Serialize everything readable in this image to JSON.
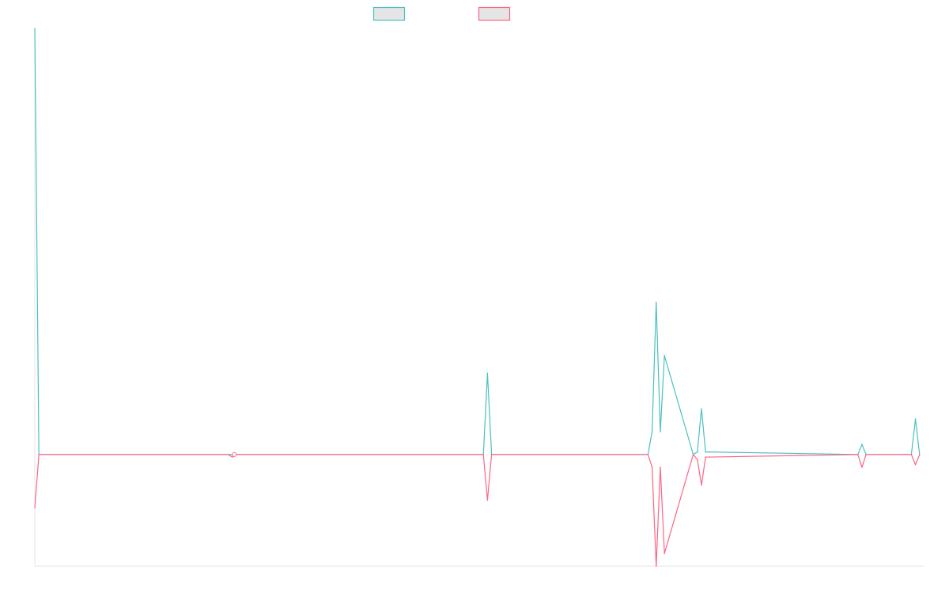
{
  "chart_data": {
    "type": "line",
    "title": "",
    "xlabel": "",
    "ylabel": "",
    "grid": false,
    "legend_position": "top-center",
    "x": [
      0,
      1,
      47,
      48,
      49,
      109,
      110,
      111,
      149,
      150,
      151,
      152,
      153,
      160,
      161,
      162,
      163,
      164,
      200,
      201,
      202,
      213,
      214,
      215
    ],
    "ylim": [
      -44,
      168
    ],
    "series": [
      {
        "color": "#4bc0c0",
        "fill": "#e5e5e5",
        "values": [
          168,
          0,
          0,
          0,
          0,
          0,
          32,
          0,
          0,
          9,
          60,
          9,
          39,
          0,
          1,
          18,
          1,
          1,
          0,
          4,
          0,
          0,
          14,
          0
        ]
      },
      {
        "color": "#ff6384",
        "fill": "#e5e5e5",
        "values": [
          -21,
          0,
          0,
          -1,
          0,
          0,
          -18,
          0,
          0,
          -5,
          -44,
          -5,
          -39,
          0,
          -2,
          -12,
          -1,
          -1,
          0,
          -5,
          0,
          0,
          -4,
          0
        ]
      }
    ]
  }
}
